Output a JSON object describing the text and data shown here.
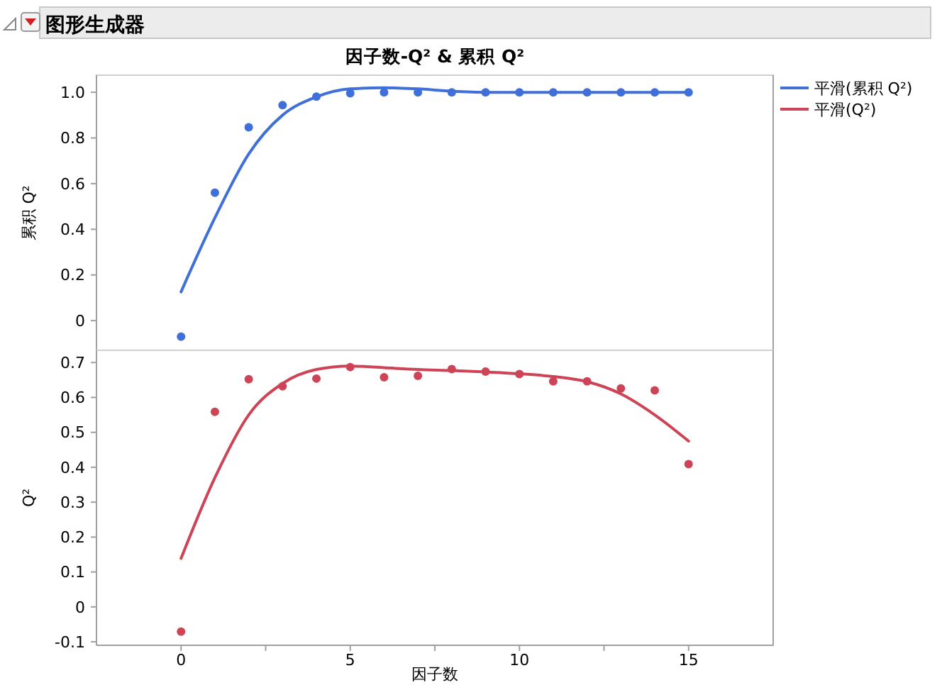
{
  "chart_data": [
    {
      "type": "scatter",
      "title": "图形生成器",
      "subtitle": "因子数-Q² & 累积 Q²",
      "ylabel": "累积 Q²",
      "xlim": [
        -2.5,
        17.5
      ],
      "ylim": [
        -0.13,
        1.075
      ],
      "yticks": [
        0,
        0.2,
        0.4,
        0.6,
        0.8,
        {
          "value": 1,
          "label": "1.0"
        }
      ],
      "tick_labels": "y",
      "grid": false,
      "legend": "right",
      "series": [
        {
          "marker": "circle",
          "color": "#3f6fd8",
          "x": [
            0,
            1,
            2,
            3,
            4,
            5,
            6,
            7,
            8,
            9,
            10,
            11,
            12,
            13,
            14,
            15
          ],
          "values": [
            -0.07,
            0.56,
            0.847,
            0.944,
            0.981,
            0.996,
            1,
            1,
            1,
            1,
            1,
            1,
            1,
            1,
            1,
            1
          ]
        },
        {
          "type": "line",
          "marker": "none",
          "name": "平滑(累积 Q²)",
          "color": "#3f6fd8",
          "x": [
            0,
            1,
            2,
            3,
            4,
            5,
            6,
            7,
            8,
            9,
            10,
            11,
            12,
            13,
            14,
            15
          ],
          "values": [
            0.126,
            0.45,
            0.73,
            0.9,
            0.98,
            1.015,
            1.02,
            1.015,
            1.005,
            1,
            1,
            1,
            1,
            1,
            1,
            1
          ]
        }
      ]
    },
    {
      "type": "scatter",
      "xlabel": "因子数",
      "ylabel": "Q²",
      "xlim": [
        -2.5,
        17.5
      ],
      "xticks": [
        0,
        {
          "value": 2.5,
          "label": null
        },
        5,
        {
          "value": 7.5,
          "label": null
        },
        10,
        {
          "value": 12.5,
          "label": null
        },
        15
      ],
      "ylim": [
        -0.11,
        0.735
      ],
      "yticks": [
        -0.1,
        0,
        0.1,
        0.2,
        0.3,
        0.4,
        0.5,
        0.6,
        0.7
      ],
      "grid": false,
      "legend": "right",
      "series": [
        {
          "marker": "circle",
          "color": "#cc4455",
          "x": [
            0,
            1,
            2,
            3,
            4,
            5,
            6,
            7,
            8,
            9,
            10,
            11,
            12,
            13,
            14,
            15
          ],
          "values": [
            -0.071,
            0.559,
            0.652,
            0.632,
            0.654,
            0.687,
            0.658,
            0.662,
            0.681,
            0.674,
            0.667,
            0.646,
            0.646,
            0.626,
            0.62,
            0.409
          ]
        },
        {
          "type": "line",
          "marker": "none",
          "name": "平滑(Q²)",
          "color": "#cc4455",
          "x": [
            0,
            1,
            2,
            3,
            4,
            5,
            6,
            7,
            8,
            9,
            10,
            11,
            12,
            13,
            14,
            15
          ],
          "values": [
            0.139,
            0.37,
            0.55,
            0.64,
            0.68,
            0.69,
            0.685,
            0.68,
            0.677,
            0.673,
            0.668,
            0.66,
            0.645,
            0.61,
            0.55,
            0.475
          ]
        }
      ]
    }
  ]
}
